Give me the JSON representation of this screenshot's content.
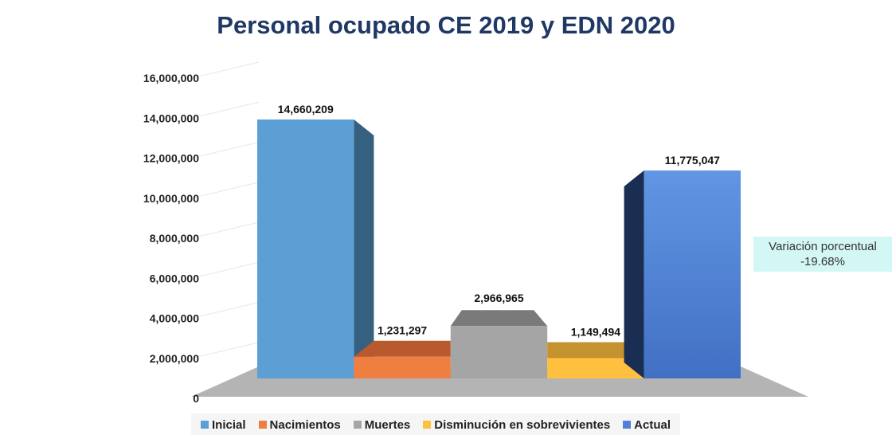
{
  "chart_data": {
    "type": "bar",
    "title": "Personal ocupado CE 2019 y EDN 2020",
    "categories": [
      "Inicial",
      "Nacimientos",
      "Muertes",
      "Disminución en sobrevivientes",
      "Actual"
    ],
    "values": [
      14660209,
      1231297,
      2966965,
      1149494,
      11775047
    ],
    "data_labels": [
      "14,660,209",
      "1,231,297",
      "2,966,965",
      "1,149,494",
      "11,775,047"
    ],
    "colors": [
      "#5b9fd4",
      "#ef7f40",
      "#a5a5a5",
      "#ffc03f",
      "#4f7fd6"
    ],
    "side_colors": [
      "#35607f",
      "#b85a2e",
      "#7a7a7a",
      "#c4922e",
      "#1a2d52"
    ],
    "ylim": [
      0,
      16000000
    ],
    "yticks": [
      "0",
      "2,000,000",
      "4,000,000",
      "6,000,000",
      "8,000,000",
      "10,000,000",
      "12,000,000",
      "14,000,000",
      "16,000,000"
    ],
    "ytick_values": [
      0,
      2000000,
      4000000,
      6000000,
      8000000,
      10000000,
      12000000,
      14000000,
      16000000
    ],
    "legend_position": "bottom",
    "projection": "3d",
    "grid": true
  },
  "annotation": {
    "line1": "Variación porcentual",
    "line2": "-19.68%"
  }
}
